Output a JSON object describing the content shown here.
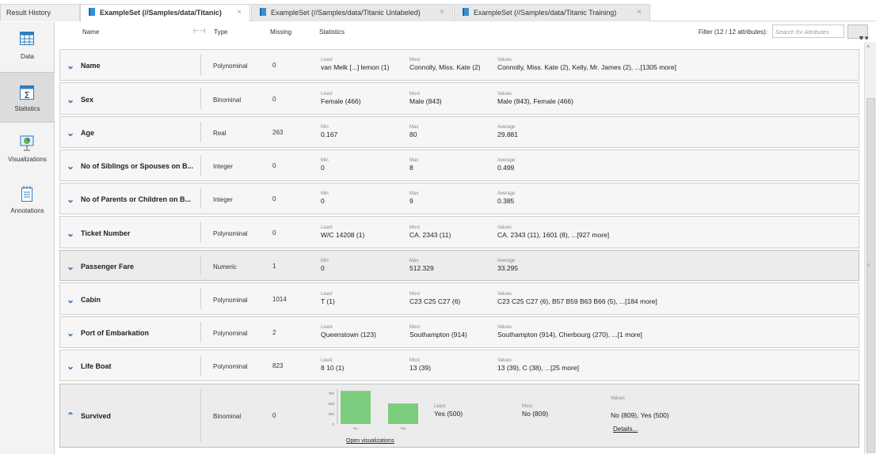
{
  "tabs": {
    "result_history": "Result History",
    "items": [
      {
        "label": "ExampleSet (//Samples/data/Titanic)",
        "close": "×"
      },
      {
        "label": "ExampleSet (//Samples/data/Titanic Unlabeled)",
        "close": "×"
      },
      {
        "label": "ExampleSet (//Samples/data/Titanic Training)",
        "close": "×"
      }
    ]
  },
  "sidebar": {
    "items": [
      {
        "label": "Data",
        "icon": "table-icon"
      },
      {
        "label": "Statistics",
        "icon": "statistics-icon"
      },
      {
        "label": "Visualizations",
        "icon": "visualizations-icon"
      },
      {
        "label": "Annotations",
        "icon": "annotations-icon"
      }
    ]
  },
  "header": {
    "name": "Name",
    "type": "Type",
    "missing": "Missing",
    "statistics": "Statistics",
    "filter_label": "Filter (12 / 12 attributes):",
    "search_placeholder": "Search for Attributes",
    "filter_icon": "▼▾"
  },
  "rows": [
    {
      "name": "Name",
      "type": "Polynominal",
      "missing": "0",
      "c1": "Least",
      "v1": "van Melk [...] lemon (1)",
      "c2": "Most",
      "v2": "Connolly, Miss. Kate (2)",
      "c3": "Values",
      "v3": "Connolly, Miss. Kate (2), Kelly, Mr. James (2), ...[1305 more]"
    },
    {
      "name": "Sex",
      "type": "Binominal",
      "missing": "0",
      "c1": "Least",
      "v1": "Female (466)",
      "c2": "Most",
      "v2": "Male (843)",
      "c3": "Values",
      "v3": "Male (843), Female (466)"
    },
    {
      "name": "Age",
      "type": "Real",
      "missing": "263",
      "c1": "Min",
      "v1": "0.167",
      "c2": "Max",
      "v2": "80",
      "c3": "Average",
      "v3": "29.881"
    },
    {
      "name": "No of Siblings or Spouses on B...",
      "type": "Integer",
      "missing": "0",
      "c1": "Min",
      "v1": "0",
      "c2": "Max",
      "v2": "8",
      "c3": "Average",
      "v3": "0.499"
    },
    {
      "name": "No of Parents or Children on B...",
      "type": "Integer",
      "missing": "0",
      "c1": "Min",
      "v1": "0",
      "c2": "Max",
      "v2": "9",
      "c3": "Average",
      "v3": "0.385"
    },
    {
      "name": "Ticket Number",
      "type": "Polynominal",
      "missing": "0",
      "c1": "Least",
      "v1": "W/C 14208 (1)",
      "c2": "Most",
      "v2": "CA. 2343 (11)",
      "c3": "Values",
      "v3": "CA. 2343 (11), 1601 (8), ...[927 more]"
    },
    {
      "name": "Passenger Fare",
      "type": "Numeric",
      "missing": "1",
      "c1": "Min",
      "v1": "0",
      "c2": "Max",
      "v2": "512.329",
      "c3": "Average",
      "v3": "33.295"
    },
    {
      "name": "Cabin",
      "type": "Polynominal",
      "missing": "1014",
      "c1": "Least",
      "v1": "T (1)",
      "c2": "Most",
      "v2": "C23 C25 C27 (6)",
      "c3": "Values",
      "v3": "C23 C25 C27 (6), B57 B59 B63 B66 (5), ...[184 more]"
    },
    {
      "name": "Port of Embarkation",
      "type": "Polynominal",
      "missing": "2",
      "c1": "Least",
      "v1": "Queenstown (123)",
      "c2": "Most",
      "v2": "Southampton (914)",
      "c3": "Values",
      "v3": "Southampton (914), Cherbourg (270), ...[1 more]"
    },
    {
      "name": "Life Boat",
      "type": "Polynominal",
      "missing": "823",
      "c1": "Least",
      "v1": "8 10 (1)",
      "c2": "Most",
      "v2": "13 (39)",
      "c3": "Values",
      "v3": "13 (39), C (38), ...[25 more]"
    }
  ],
  "survived": {
    "name": "Survived",
    "type": "Binominal",
    "missing": "0",
    "c1": "Least",
    "v1": "Yes (500)",
    "c2": "Most",
    "v2": "No (809)",
    "c3": "Values",
    "v3": "No (809), Yes (500)",
    "details": "Details...",
    "open_vis": "Open visualizations"
  },
  "chart_data": {
    "type": "bar",
    "categories": [
      "No",
      "Yes"
    ],
    "values": [
      809,
      500
    ],
    "yticks": [
      "750",
      "500",
      "250",
      "0"
    ],
    "ylim": [
      0,
      850
    ],
    "color": "#7dcc7d"
  }
}
